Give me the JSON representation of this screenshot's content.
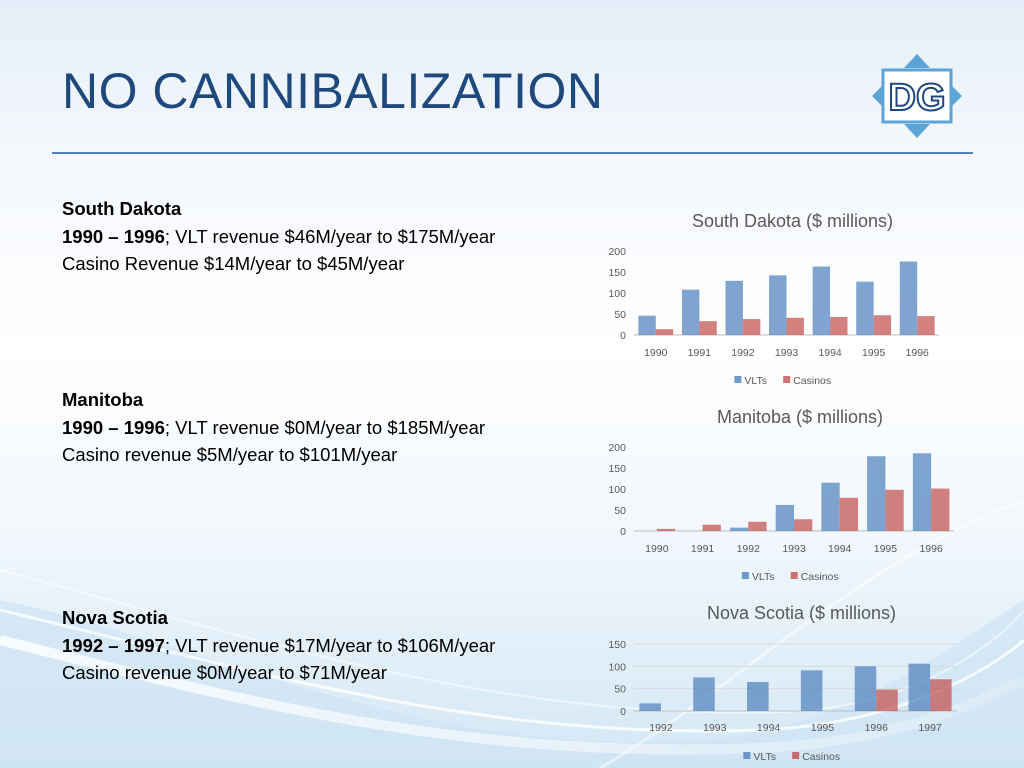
{
  "slide": {
    "title": "NO CANNIBALIZATION",
    "logo_text": "DG",
    "colors": {
      "title": "#1f497d",
      "rule": "#4f81bd",
      "vlt": "#4f81bd",
      "casino": "#c0504d",
      "logo": "#5aa4d8"
    }
  },
  "sections": [
    {
      "region": "South Dakota",
      "period": "1990 – 1996",
      "line1_rest": "; VLT revenue $46M/year to $175M/year",
      "line2": "Casino Revenue $14M/year to $45M/year"
    },
    {
      "region": "Manitoba",
      "period": "1990 – 1996",
      "line1_rest": "; VLT revenue $0M/year to $185M/year",
      "line2": "Casino revenue $5M/year to $101M/year"
    },
    {
      "region": "Nova Scotia",
      "period": "1992 – 1997",
      "line1_rest": "; VLT revenue $17M/year to $106M/year",
      "line2": "Casino revenue $0M/year to $71M/year"
    }
  ],
  "chart_data": [
    {
      "type": "bar",
      "title": "South Dakota ($ millions)",
      "categories": [
        "1990",
        "1991",
        "1992",
        "1993",
        "1994",
        "1995",
        "1996"
      ],
      "series": [
        {
          "name": "VLTs",
          "values": [
            46,
            108,
            129,
            142,
            163,
            127,
            175
          ]
        },
        {
          "name": "Casinos",
          "values": [
            14,
            33,
            38,
            41,
            43,
            47,
            45
          ]
        }
      ],
      "ylim": [
        0,
        200
      ],
      "yticks": [
        0,
        50,
        100,
        150,
        200
      ],
      "legend": "bottom",
      "grid": false
    },
    {
      "type": "bar",
      "title": "Manitoba ($ millions)",
      "categories": [
        "1990",
        "1991",
        "1992",
        "1993",
        "1994",
        "1995",
        "1996"
      ],
      "series": [
        {
          "name": "VLTs",
          "values": [
            0,
            0,
            8,
            62,
            115,
            178,
            185
          ]
        },
        {
          "name": "Casinos",
          "values": [
            5,
            15,
            22,
            28,
            79,
            98,
            101
          ]
        }
      ],
      "ylim": [
        0,
        200
      ],
      "yticks": [
        0,
        50,
        100,
        150,
        200
      ],
      "legend": "bottom",
      "grid": false
    },
    {
      "type": "bar",
      "title": "Nova Scotia ($ millions)",
      "categories": [
        "1992",
        "1993",
        "1994",
        "1995",
        "1996",
        "1997"
      ],
      "series": [
        {
          "name": "VLTs",
          "values": [
            17,
            75,
            65,
            91,
            100,
            106
          ]
        },
        {
          "name": "Casinos",
          "values": [
            0,
            0,
            0,
            0,
            48,
            71
          ]
        }
      ],
      "ylim": [
        0,
        150
      ],
      "yticks": [
        0,
        50,
        100,
        150
      ],
      "legend": "bottom",
      "grid": true
    }
  ]
}
